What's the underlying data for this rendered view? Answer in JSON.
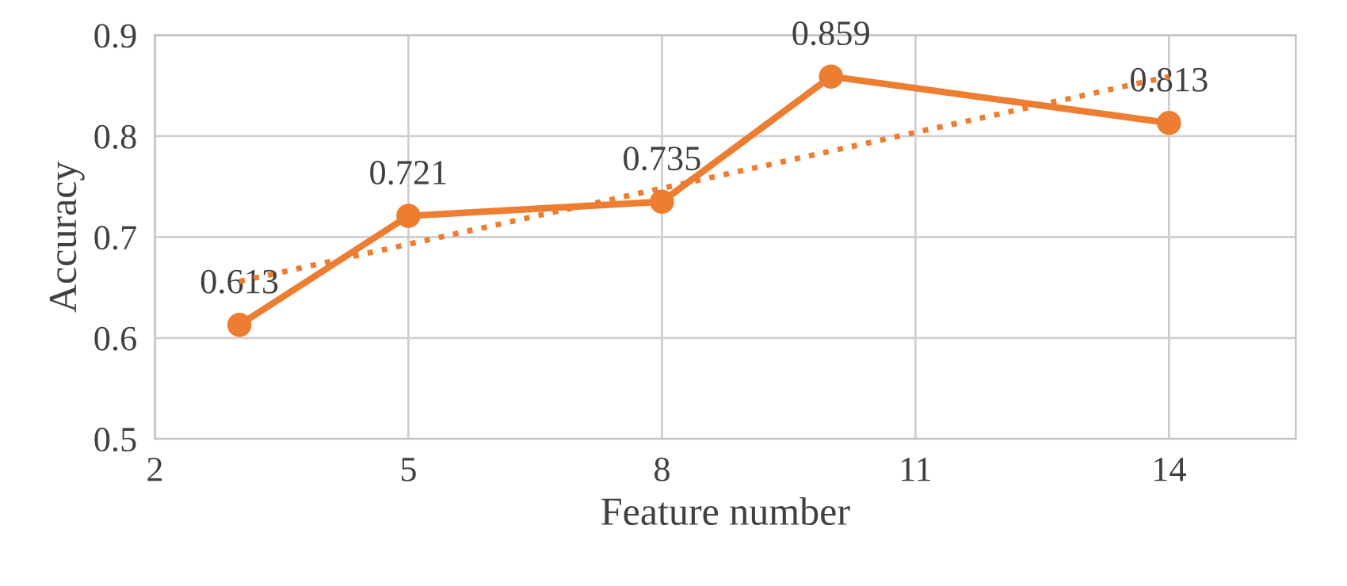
{
  "chart_data": {
    "type": "line",
    "xlabel": "Feature number",
    "ylabel": "Accuracy",
    "xlim": [
      2,
      15.5
    ],
    "xticks": [
      2,
      5,
      8,
      11,
      14
    ],
    "ylim": [
      0.5,
      0.9
    ],
    "yticks": [
      0.5,
      0.6,
      0.7,
      0.8,
      0.9
    ],
    "grid": true,
    "series": [
      {
        "color": "#ed7d31",
        "x": [
          3,
          5,
          8,
          10,
          14
        ],
        "values": [
          0.613,
          0.721,
          0.735,
          0.859,
          0.813
        ],
        "value_labels": [
          "0.613",
          "0.721",
          "0.735",
          "0.859",
          "0.813"
        ],
        "marker": "circle",
        "line_style": "solid"
      },
      {
        "color": "#ed7d31",
        "x": [
          3,
          14
        ],
        "values": [
          0.656,
          0.859
        ],
        "marker": "none",
        "line_style": "dotted"
      }
    ]
  }
}
